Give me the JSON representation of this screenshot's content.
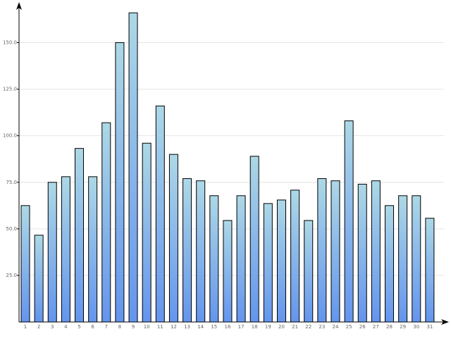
{
  "chart_data": {
    "type": "bar",
    "categories": [
      "1",
      "2",
      "3",
      "4",
      "5",
      "6",
      "7",
      "8",
      "9",
      "10",
      "11",
      "12",
      "13",
      "14",
      "15",
      "16",
      "17",
      "18",
      "19",
      "20",
      "21",
      "22",
      "23",
      "24",
      "25",
      "26",
      "27",
      "28",
      "29",
      "30",
      "31"
    ],
    "values": [
      62.5,
      46.6,
      75,
      78,
      93.2,
      78,
      107,
      150,
      166,
      96,
      116,
      90,
      77,
      75.8,
      67.8,
      54.5,
      67.8,
      89,
      63.6,
      65.5,
      70.8,
      54.5,
      77,
      75.8,
      108,
      74,
      75.8,
      62.5,
      67.8,
      67.8,
      55.7
    ],
    "color": [
      "#add8e6",
      "#6495ed"
    ],
    "ylim": [
      0,
      171
    ],
    "yticks": [
      {
        "value": 25,
        "label": "25.0"
      },
      {
        "value": 50,
        "label": "50.0"
      },
      {
        "value": 75,
        "label": "75.0"
      },
      {
        "value": 100,
        "label": "100.0"
      },
      {
        "value": 125,
        "label": "125.0"
      },
      {
        "value": 150,
        "label": "150.0"
      }
    ],
    "grid": true
  }
}
